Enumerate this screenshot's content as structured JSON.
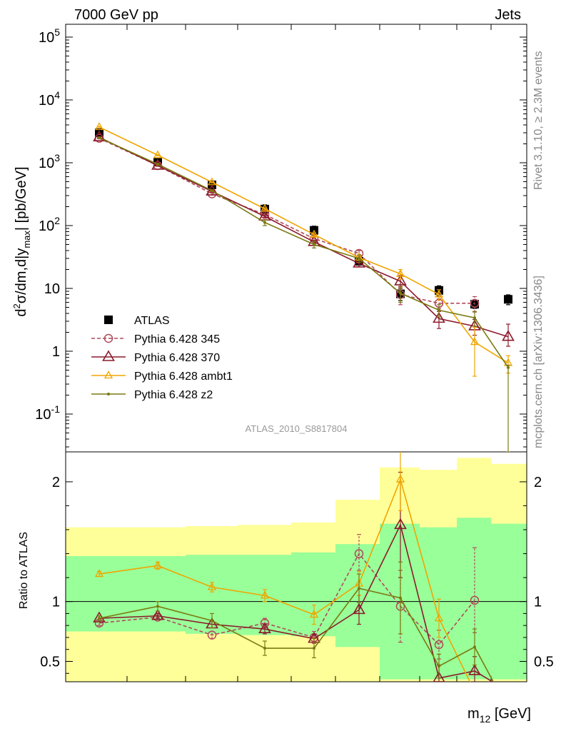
{
  "header": {
    "left": "7000 GeV pp",
    "right": "Jets"
  },
  "side": {
    "rivet": "Rivet 3.1.10, ≥ 2.3M events",
    "mcplots": "mcplots.cern.ch [arXiv:1306.3436]"
  },
  "chart_data": {
    "type": "scatter",
    "analysis_label": "ATLAS_2010_S8817804",
    "xlabel": "m12 [GeV]",
    "ylabel": "d²σ/dm,d|y_max| [pb/GeV]",
    "ylabel_ratio": "Ratio to ATLAS",
    "yscale": "log",
    "ylim": [
      0.025,
      160000
    ],
    "ratio_ylim": [
      0.33,
      2.25
    ],
    "ratio_yticks": [
      0.5,
      1,
      2
    ],
    "main_yticks": [
      "10^-1",
      "1",
      "10",
      "10^2",
      "10^3",
      "10^4",
      "10^5"
    ],
    "legend_position": "lower-left",
    "bins": [
      1,
      2,
      3,
      4,
      5,
      6,
      7,
      8,
      9,
      10
    ],
    "band_inner": [
      [
        0.75,
        1.38
      ],
      [
        0.75,
        1.38
      ],
      [
        0.73,
        1.39
      ],
      [
        0.72,
        1.39
      ],
      [
        0.71,
        1.41
      ],
      [
        0.62,
        1.48
      ],
      [
        0.35,
        1.65
      ],
      [
        0.35,
        1.62
      ],
      [
        0.35,
        1.7
      ],
      [
        0.35,
        1.65
      ]
    ],
    "band_outer": [
      [
        0.33,
        1.62
      ],
      [
        0.33,
        1.62
      ],
      [
        0.33,
        1.63
      ],
      [
        0.33,
        1.64
      ],
      [
        0.33,
        1.66
      ],
      [
        0.33,
        1.85
      ],
      [
        0.33,
        2.12
      ],
      [
        0.33,
        2.1
      ],
      [
        0.33,
        2.2
      ],
      [
        0.33,
        2.15
      ]
    ],
    "series": [
      {
        "name": "ATLAS",
        "color": "#000000",
        "marker": "square",
        "values": [
          3000,
          1030,
          445,
          183,
          84,
          27,
          8.2,
          9.3,
          5.6,
          6.7
        ],
        "err_lo": [
          2600,
          880,
          380,
          152,
          70,
          22,
          6.4,
          7.6,
          4.8,
          5.5
        ],
        "err_hi": [
          3400,
          1180,
          510,
          214,
          98,
          32,
          10,
          11,
          6.4,
          7.9
        ]
      },
      {
        "name": "Pythia 6.428 345",
        "color": "#b04a5a",
        "marker": "circle",
        "dashed": true,
        "values": [
          2450,
          900,
          320,
          150,
          62,
          36,
          8,
          5.8,
          5.8,
          null
        ],
        "err_lo": [
          2400,
          880,
          310,
          144,
          58,
          32,
          5.5,
          4.8,
          4.2,
          null
        ],
        "err_hi": [
          2500,
          920,
          330,
          156,
          66,
          40,
          10.5,
          6.8,
          7.4,
          null
        ],
        "ratio": [
          0.82,
          0.87,
          0.72,
          0.82,
          0.7,
          1.4,
          0.96,
          0.64,
          1.01,
          null
        ],
        "ratio_lo": [
          0.8,
          0.85,
          0.69,
          0.78,
          0.65,
          1.26,
          0.66,
          0.52,
          0.74,
          null
        ],
        "ratio_hi": [
          0.84,
          0.89,
          0.75,
          0.86,
          0.75,
          1.56,
          1.26,
          0.76,
          1.45,
          null
        ]
      },
      {
        "name": "Pythia 6.428 370",
        "color": "#8b1a2b",
        "marker": "triangle",
        "values": [
          2550,
          900,
          350,
          140,
          55,
          25,
          13,
          3.3,
          2.5,
          1.7
        ],
        "err_lo": [
          2500,
          880,
          340,
          135,
          52,
          22,
          10,
          2.3,
          1.8,
          1.2
        ],
        "err_hi": [
          2600,
          920,
          360,
          145,
          58,
          28,
          16,
          4.3,
          3.2,
          2.7
        ],
        "ratio": [
          0.86,
          0.88,
          0.81,
          0.77,
          0.69,
          0.93,
          1.64,
          0.36,
          0.42,
          0.25
        ],
        "ratio_lo": [
          0.84,
          0.86,
          0.78,
          0.73,
          0.66,
          0.81,
          1.2,
          0.25,
          0.3,
          0.2
        ],
        "ratio_hi": [
          0.88,
          0.9,
          0.84,
          0.81,
          0.72,
          1.05,
          2.08,
          0.47,
          0.54,
          0.3
        ]
      },
      {
        "name": "Pythia 6.428 ambt1",
        "color": "#f0a500",
        "marker": "triangle-small",
        "values": [
          3700,
          1320,
          490,
          185,
          72,
          31,
          17,
          8,
          1.4,
          0.65
        ],
        "err_lo": [
          3620,
          1290,
          478,
          178,
          68,
          28,
          14,
          6.5,
          0.4,
          0.45
        ],
        "err_hi": [
          3780,
          1350,
          502,
          192,
          76,
          34,
          20,
          9.5,
          2.4,
          0.85
        ],
        "ratio": [
          1.23,
          1.3,
          1.12,
          1.05,
          0.89,
          1.15,
          2.02,
          0.86,
          0.25,
          0.1
        ],
        "ratio_lo": [
          1.21,
          1.27,
          1.08,
          1.0,
          0.81,
          1.05,
          1.76,
          0.7,
          0.2,
          0.05
        ],
        "ratio_hi": [
          1.25,
          1.33,
          1.16,
          1.1,
          0.97,
          1.25,
          2.28,
          1.02,
          0.3,
          0.15
        ]
      },
      {
        "name": "Pythia 6.428 z2",
        "color": "#7a7a10",
        "marker": "dot",
        "values": [
          2500,
          950,
          360,
          112,
          50,
          30,
          8.4,
          4.5,
          3.4,
          0.55
        ],
        "err_lo": [
          2440,
          920,
          348,
          100,
          44,
          26,
          6,
          3.5,
          2.5,
          0.02
        ],
        "err_hi": [
          2560,
          980,
          372,
          124,
          56,
          34,
          10.8,
          5.5,
          4.3,
          0.6
        ],
        "ratio": [
          0.86,
          0.96,
          0.84,
          0.61,
          0.61,
          1.11,
          1.03,
          0.46,
          0.62,
          0.1
        ],
        "ratio_lo": [
          0.84,
          0.92,
          0.78,
          0.55,
          0.53,
          0.99,
          0.73,
          0.36,
          0.47,
          0.05
        ],
        "ratio_hi": [
          0.88,
          1.0,
          0.9,
          0.67,
          0.69,
          1.23,
          1.33,
          0.56,
          0.77,
          0.15
        ]
      }
    ]
  }
}
